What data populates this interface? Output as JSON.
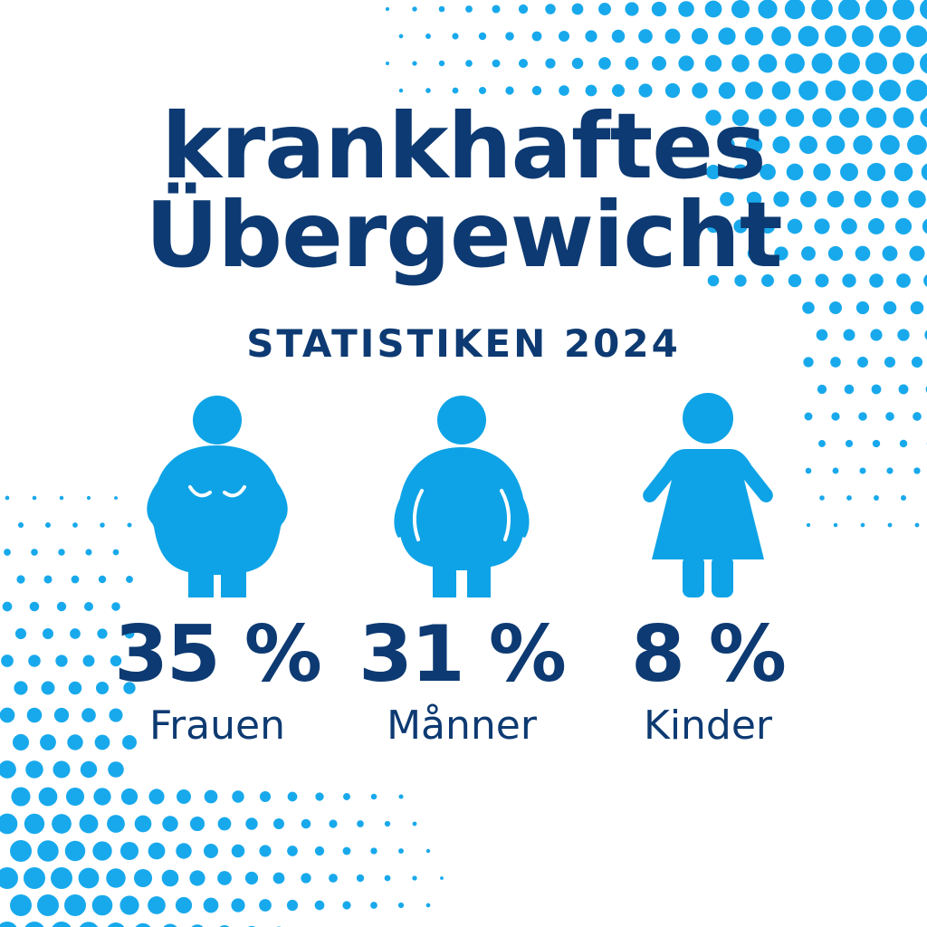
{
  "header": {
    "title_line1": "krankhaftes",
    "title_line2": "Übergewicht",
    "subtitle": "STATISTIKEN 2024"
  },
  "stats": [
    {
      "value": "35 %",
      "label": "Frauen",
      "icon": "woman-figure-icon"
    },
    {
      "value": "31 %",
      "label": "Månner",
      "icon": "man-figure-icon"
    },
    {
      "value": "8 %",
      "label": "Kinder",
      "icon": "child-figure-icon"
    }
  ],
  "colors": {
    "navy": "#0d3a72",
    "icon_blue": "#0ea3e6",
    "dot_blue": "#18a9ec",
    "background": "#ffffff"
  }
}
